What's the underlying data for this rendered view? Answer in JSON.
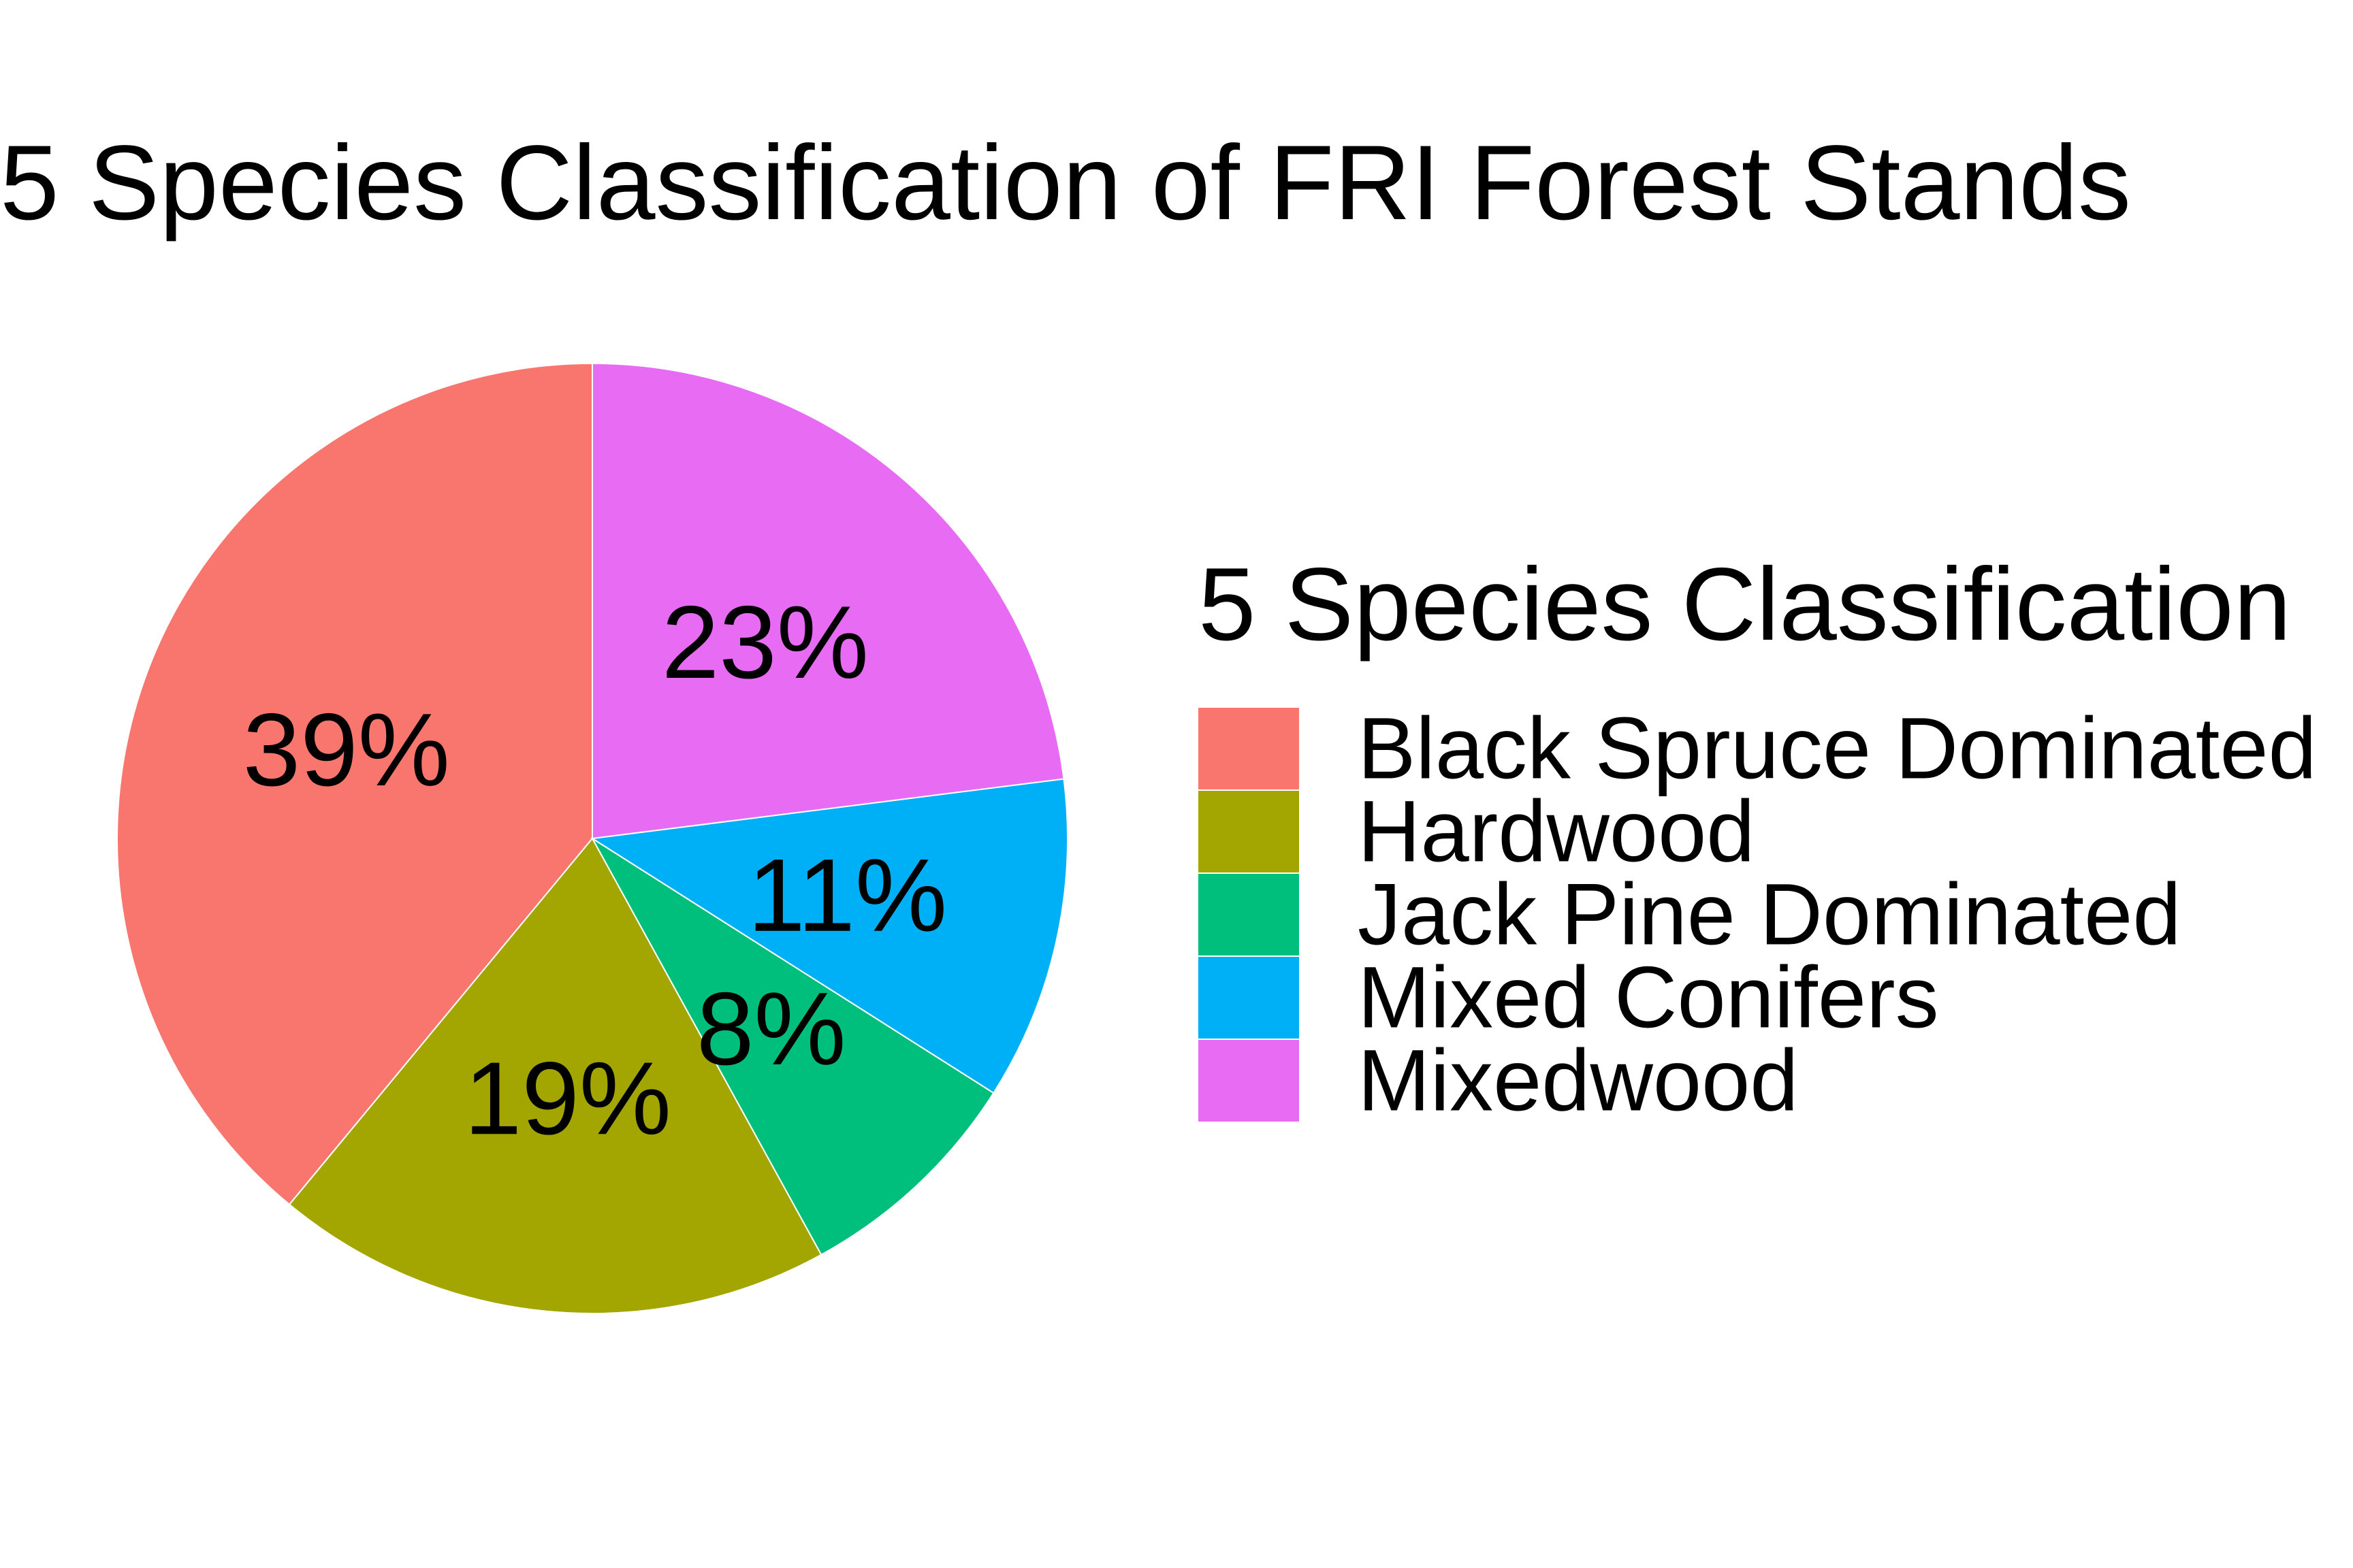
{
  "chart_data": {
    "type": "pie",
    "title": "5 Species Classification of FRI Forest Stands",
    "legend": {
      "title": "5 Species Classification",
      "position": "right"
    },
    "start_angle_deg": 0,
    "direction": "counterclockwise",
    "slices": [
      {
        "label": "Black Spruce Dominated",
        "value": 39,
        "display": "39%",
        "color": "#F8766D"
      },
      {
        "label": "Hardwood",
        "value": 19,
        "display": "19%",
        "color": "#A3A500"
      },
      {
        "label": "Jack Pine Dominated",
        "value": 8,
        "display": "8%",
        "color": "#00BF7D"
      },
      {
        "label": "Mixed Conifers",
        "value": 11,
        "display": "11%",
        "color": "#00B0F6"
      },
      {
        "label": "Mixedwood",
        "value": 23,
        "display": "23%",
        "color": "#E76BF3"
      }
    ]
  }
}
